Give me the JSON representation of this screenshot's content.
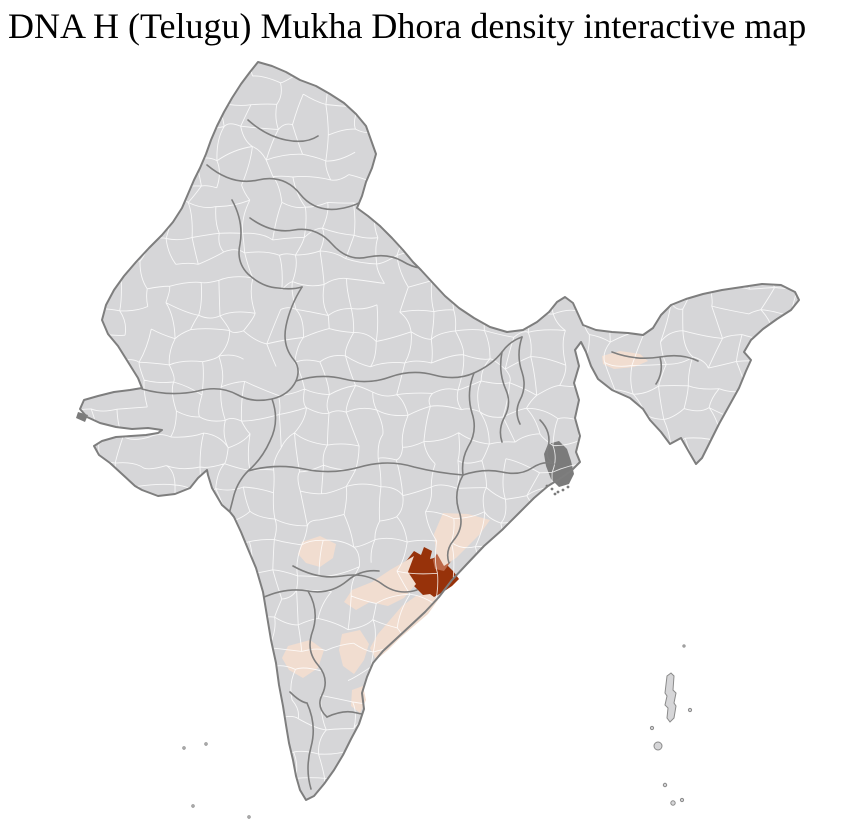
{
  "title": "DNA H (Telugu) Mukha Dhora density interactive map",
  "map": {
    "name": "india-district-density-choropleth",
    "background_color": "#ffffff",
    "base_region_color": "#d6d6d8",
    "district_border_color": "#ffffff",
    "state_border_color": "#7e7e7e",
    "island_stroke_color": "#8a8a8a",
    "masked_region_color": "#7b7b7b",
    "density_scale": {
      "none": "#d6d6d8",
      "low": "#f1ddd0",
      "medium": "#bc6848",
      "high": "#97320a"
    },
    "regions": [
      {
        "id": "east-coast-core",
        "description": "highest-density district on the east coast",
        "level": "high"
      },
      {
        "id": "east-coast-adjacent",
        "description": "medium-density district adjoining the core",
        "level": "medium"
      },
      {
        "id": "coastal-strip-north",
        "description": "low-density coastal strip north-east of core",
        "level": "low"
      },
      {
        "id": "coastal-belt-inland",
        "description": "low-density belt inland / west of core",
        "level": "low"
      },
      {
        "id": "coastal-delta-south",
        "description": "low-density delta coast south-west of core",
        "level": "low"
      },
      {
        "id": "interior-plateau-district",
        "description": "low-density interior district",
        "level": "low"
      },
      {
        "id": "southwest-plateau-district",
        "description": "low-density south-western plateau district",
        "level": "low"
      },
      {
        "id": "south-coastal-district",
        "description": "low-density district near south-east coast",
        "level": "low"
      },
      {
        "id": "far-south-coastal-district",
        "description": "low-density coastal patch in far south",
        "level": "low"
      },
      {
        "id": "northeast-valley-district",
        "description": "low-density district in north-east valley",
        "level": "low"
      },
      {
        "id": "delta-islands-region",
        "description": "dark grey delta / islands region",
        "level": "masked"
      }
    ]
  }
}
